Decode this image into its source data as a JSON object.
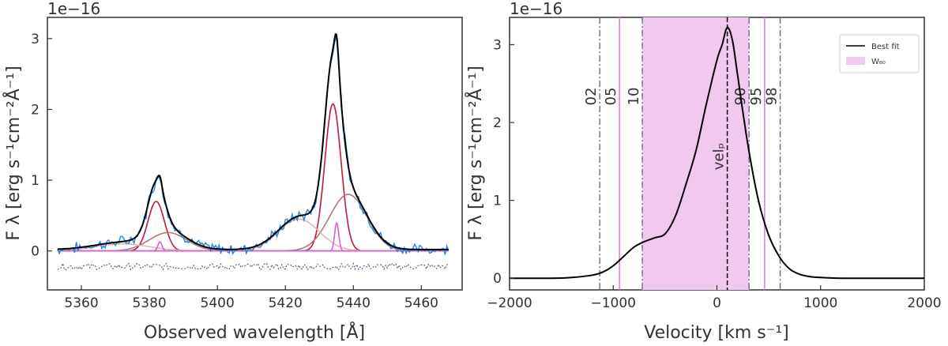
{
  "chart_data": [
    {
      "type": "line",
      "title": "",
      "xlabel": "Observed wavelength [Å]",
      "ylabel": "F λ [erg s⁻¹cm⁻²Å⁻¹]",
      "y_multiplier": "1e−16",
      "xlim": [
        5350,
        5472
      ],
      "ylim": [
        -0.55,
        3.3
      ],
      "x_ticks": [
        5360,
        5380,
        5400,
        5420,
        5440,
        5460
      ],
      "y_ticks": [
        0,
        1,
        2,
        3
      ],
      "grid": false,
      "components": [
        {
          "color": "#c2183c",
          "peaks": [
            {
              "center": 5382.0,
              "amp": 0.7,
              "sigma": 2.4
            },
            {
              "center": 5434.0,
              "amp": 2.08,
              "sigma": 2.4
            }
          ]
        },
        {
          "color": "#b07a73",
          "peaks": [
            {
              "center": 5385.5,
              "amp": 0.26,
              "sigma": 5.5
            },
            {
              "center": 5438.5,
              "amp": 0.8,
              "sigma": 5.5
            }
          ]
        },
        {
          "color": "#eab3b3",
          "peaks": [
            {
              "center": 5372.0,
              "amp": 0.1,
              "sigma": 8.0
            },
            {
              "center": 5424.0,
              "amp": 0.45,
              "sigma": 6.0
            }
          ]
        },
        {
          "color": "#d75fd7",
          "peaks": [
            {
              "center": 5383.1,
              "amp": 0.13,
              "sigma": 0.6
            },
            {
              "center": 5435.1,
              "amp": 0.4,
              "sigma": 0.6
            }
          ]
        }
      ],
      "data_range": [
        5353,
        5468
      ],
      "colors": {
        "data": "#1e88e5",
        "fit": "#000000",
        "residuals": "#4a5a75",
        "baseline": "#c08080"
      }
    },
    {
      "type": "line",
      "title": "",
      "xlabel": "Velocity [km s⁻¹]",
      "ylabel": "F λ [erg s⁻¹cm⁻²Å⁻¹]",
      "y_multiplier": "1e−16",
      "xlim": [
        -2000,
        2000
      ],
      "ylim": [
        -0.15,
        3.35
      ],
      "x_ticks": [
        -2000,
        -1000,
        0,
        1000,
        2000
      ],
      "y_ticks": [
        0,
        1,
        2,
        3
      ],
      "grid": false,
      "series": [
        {
          "name": "Best fit",
          "x": [
            -2000,
            -1600,
            -1400,
            -1200,
            -1100,
            -1000,
            -900,
            -800,
            -700,
            -600,
            -500,
            -400,
            -300,
            -200,
            -100,
            0,
            50,
            100,
            150,
            200,
            300,
            400,
            500,
            600,
            700,
            800,
            900,
            1000,
            1200,
            1400,
            2000
          ],
          "y": [
            0.0,
            0.0,
            0.01,
            0.04,
            0.08,
            0.16,
            0.28,
            0.4,
            0.47,
            0.52,
            0.57,
            0.8,
            1.2,
            1.65,
            2.25,
            2.8,
            3.0,
            3.22,
            3.05,
            2.6,
            1.7,
            1.0,
            0.55,
            0.28,
            0.12,
            0.05,
            0.02,
            0.01,
            0.0,
            0.0,
            0.0
          ]
        }
      ],
      "w80_band": [
        -720,
        310
      ],
      "w80_label": "W₈₀",
      "percentile_lines": [
        {
          "label": "02",
          "x": -1130,
          "style": "dashdot"
        },
        {
          "label": "05",
          "x": -940,
          "style": "solid"
        },
        {
          "label": "10",
          "x": -720,
          "style": "dashdot"
        },
        {
          "label": "90",
          "x": 310,
          "style": "dashdot"
        },
        {
          "label": "95",
          "x": 460,
          "style": "solid"
        },
        {
          "label": "98",
          "x": 610,
          "style": "dashdot"
        }
      ],
      "peak_line": {
        "label": "velₚ",
        "x": 100
      },
      "legend": {
        "placement": "top-right",
        "entries": [
          "Best fit",
          "W₈₀"
        ]
      },
      "colors": {
        "fit": "#000000",
        "band": "#f1c8ee",
        "solid_lines": "#d67fd6",
        "dashdot_lines": "#6a7a8a"
      }
    }
  ]
}
